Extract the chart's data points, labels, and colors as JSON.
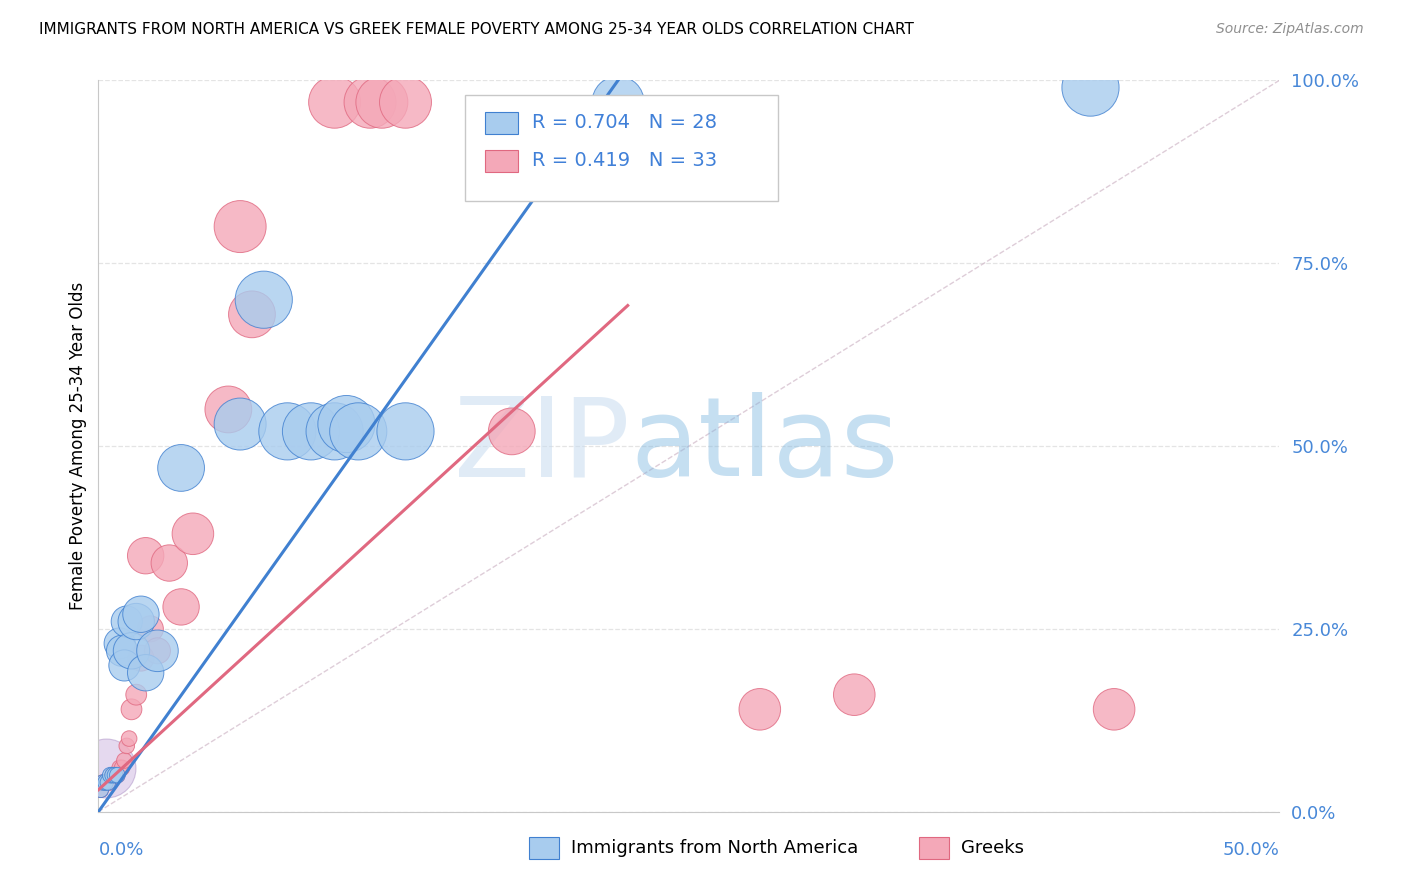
{
  "title": "IMMIGRANTS FROM NORTH AMERICA VS GREEK FEMALE POVERTY AMONG 25-34 YEAR OLDS CORRELATION CHART",
  "source": "Source: ZipAtlas.com",
  "ylabel": "Female Poverty Among 25-34 Year Olds",
  "ytick_labels": [
    "0.0%",
    "25.0%",
    "50.0%",
    "75.0%",
    "100.0%"
  ],
  "ytick_vals": [
    0.0,
    0.25,
    0.5,
    0.75,
    1.0
  ],
  "xlim": [
    0,
    0.5
  ],
  "ylim": [
    0,
    1.0
  ],
  "watermark_zip": "ZIP",
  "watermark_atlas": "atlas",
  "blue_color": "#A8CCEE",
  "pink_color": "#F4A8B8",
  "line_blue": "#4080D0",
  "line_pink": "#E06880",
  "refline_color": "#D0B8C8",
  "grid_color": "#E4E4E4",
  "purple_color": "#C0A0D8",
  "purple_edge": "#9878B8",
  "blue_R": 0.704,
  "blue_N": 28,
  "pink_R": 0.419,
  "pink_N": 33,
  "blue_line_x0": 0.0,
  "blue_line_y0": 0.0,
  "blue_line_x1": 0.22,
  "blue_line_y1": 1.0,
  "pink_line_x0": 0.0,
  "pink_line_y0": 0.03,
  "pink_line_x1": 0.22,
  "pink_line_y1": 0.68,
  "blue_x": [
    0.001,
    0.002,
    0.003,
    0.004,
    0.005,
    0.006,
    0.007,
    0.008,
    0.009,
    0.01,
    0.011,
    0.012,
    0.014,
    0.016,
    0.018,
    0.02,
    0.025,
    0.035,
    0.06,
    0.07,
    0.08,
    0.09,
    0.1,
    0.105,
    0.11,
    0.13,
    0.22,
    0.42
  ],
  "blue_y": [
    0.03,
    0.04,
    0.04,
    0.04,
    0.05,
    0.05,
    0.05,
    0.05,
    0.23,
    0.22,
    0.2,
    0.26,
    0.22,
    0.26,
    0.27,
    0.19,
    0.22,
    0.47,
    0.53,
    0.7,
    0.52,
    0.52,
    0.52,
    0.53,
    0.52,
    0.52,
    0.97,
    0.99
  ],
  "blue_s": [
    6,
    6,
    6,
    6,
    6,
    6,
    6,
    6,
    12,
    12,
    12,
    12,
    14,
    14,
    14,
    14,
    16,
    18,
    20,
    22,
    22,
    22,
    22,
    22,
    22,
    22,
    20,
    22
  ],
  "pink_x": [
    0.001,
    0.002,
    0.003,
    0.004,
    0.005,
    0.006,
    0.007,
    0.008,
    0.009,
    0.01,
    0.011,
    0.012,
    0.013,
    0.014,
    0.016,
    0.018,
    0.02,
    0.022,
    0.025,
    0.03,
    0.035,
    0.04,
    0.055,
    0.06,
    0.065,
    0.1,
    0.115,
    0.12,
    0.13,
    0.175,
    0.28,
    0.32,
    0.43
  ],
  "pink_y": [
    0.03,
    0.04,
    0.04,
    0.04,
    0.04,
    0.05,
    0.05,
    0.05,
    0.06,
    0.06,
    0.07,
    0.09,
    0.1,
    0.14,
    0.16,
    0.21,
    0.35,
    0.25,
    0.22,
    0.34,
    0.28,
    0.38,
    0.55,
    0.8,
    0.68,
    0.97,
    0.97,
    0.97,
    0.97,
    0.52,
    0.14,
    0.16,
    0.14
  ],
  "pink_s": [
    6,
    6,
    6,
    6,
    6,
    6,
    6,
    6,
    6,
    6,
    6,
    6,
    6,
    8,
    8,
    10,
    14,
    10,
    10,
    14,
    14,
    16,
    18,
    20,
    18,
    20,
    20,
    20,
    20,
    18,
    16,
    16,
    16
  ]
}
